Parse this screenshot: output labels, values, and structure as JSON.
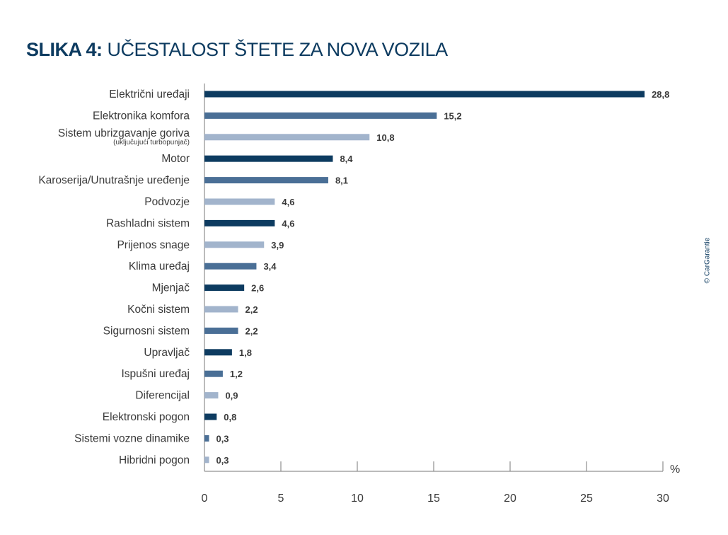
{
  "title_bold": "SLIKA 4:",
  "title_rest": "UČESTALOST ŠTETE ZA NOVA VOZILA",
  "copyright": "© CarGarantie",
  "colors": {
    "dark": "#0d3b60",
    "mid": "#4a6f96",
    "light": "#a2b4cc",
    "text": "#3a3a3a",
    "axis": "#777777"
  },
  "chart_data": {
    "type": "bar",
    "orientation": "horizontal",
    "title": "SLIKA 4: UČESTALOST ŠTETE ZA NOVA VOZILA",
    "xlabel": "%",
    "xlim": [
      0,
      30
    ],
    "xticks": [
      "0",
      "5",
      "10",
      "15",
      "20",
      "25",
      "30"
    ],
    "xtick_values": [
      0,
      5,
      10,
      15,
      20,
      25,
      30
    ],
    "categories": [
      "Električni uređaji",
      "Elektronika komfora",
      "Sistem ubrizgavanje goriva",
      "Motor",
      "Karoserija/Unutrašnje uređenje",
      "Podvozje",
      "Rashladni sistem",
      "Prijenos snage",
      "Klima uređaj",
      "Mjenjač",
      "Kočni sistem",
      "Sigurnosni sistem",
      "Upravljač",
      "Ispušni uređaj",
      "Diferencijal",
      "Elektronski pogon",
      "Sistemi vozne dinamike",
      "Hibridni pogon"
    ],
    "sublabels": {
      "2": "(uključujući turbopunjač)"
    },
    "values": [
      28.8,
      15.2,
      10.8,
      8.4,
      8.1,
      4.6,
      4.6,
      3.9,
      3.4,
      2.6,
      2.2,
      2.2,
      1.8,
      1.2,
      0.9,
      0.8,
      0.3,
      0.3
    ],
    "value_labels": [
      "28,8",
      "15,2",
      "10,8",
      "8,4",
      "8,1",
      "4,6",
      "4,6",
      "3,9",
      "3,4",
      "2,6",
      "2,2",
      "2,2",
      "1,8",
      "1,2",
      "0,9",
      "0,8",
      "0,3",
      "0,3"
    ],
    "bar_shades": [
      "dark",
      "mid",
      "light",
      "dark",
      "mid",
      "light",
      "dark",
      "light",
      "mid",
      "dark",
      "light",
      "mid",
      "dark",
      "mid",
      "light",
      "dark",
      "mid",
      "light"
    ],
    "grid": false
  }
}
